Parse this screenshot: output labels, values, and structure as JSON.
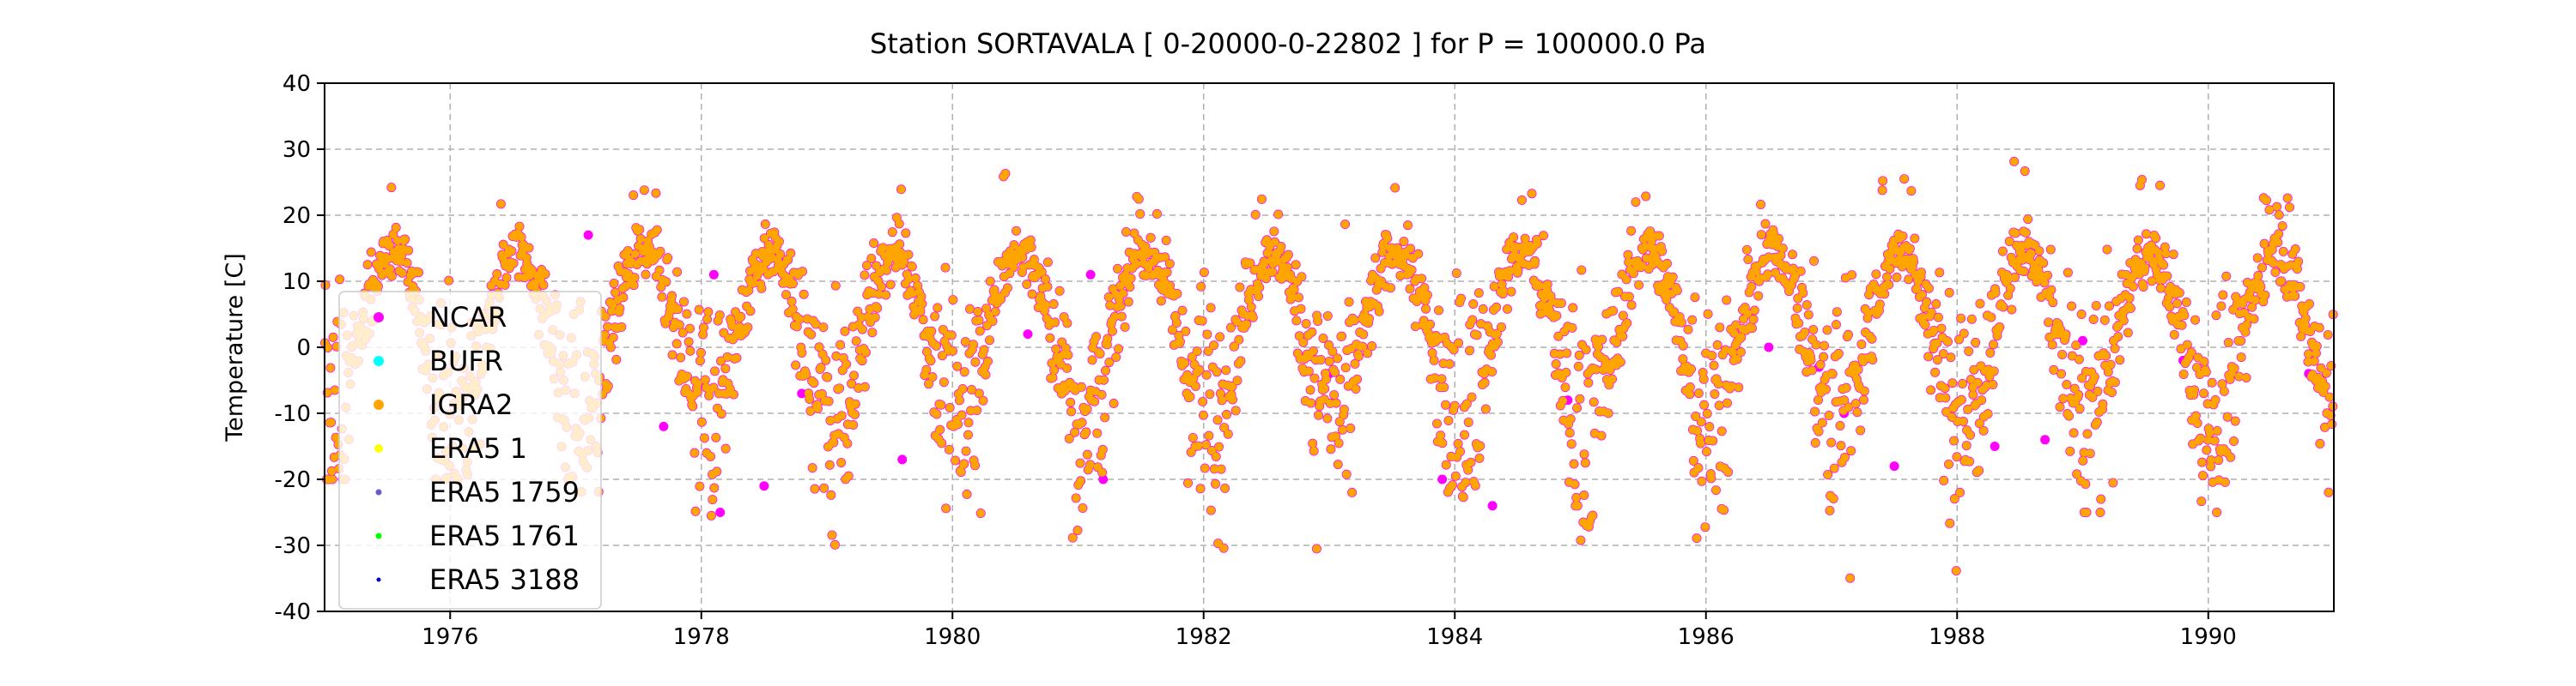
{
  "chart_data": {
    "type": "scatter",
    "title": "Station  SORTAVALA [ 0-20000-0-22802 ]  for P = 100000.0 Pa",
    "xlabel": "",
    "ylabel": "Temperature [C]",
    "xlim": [
      1975.0,
      1991.0
    ],
    "ylim": [
      -40,
      40
    ],
    "x_ticks": [
      1976,
      1978,
      1980,
      1982,
      1984,
      1986,
      1988,
      1990
    ],
    "y_ticks": [
      -40,
      -30,
      -20,
      -10,
      0,
      10,
      20,
      30,
      40
    ],
    "grid": true,
    "legend_position": "left",
    "seasonal_model": {
      "years": [
        1975,
        1976,
        1977,
        1978,
        1979,
        1980,
        1981,
        1982,
        1983,
        1984,
        1985,
        1986,
        1987,
        1988,
        1989,
        1990
      ],
      "summer_peak_max": [
        26,
        24,
        26,
        25,
        26,
        27,
        23,
        23,
        27,
        24,
        24,
        24,
        26,
        29,
        26,
        23
      ],
      "winter_min": [
        -20,
        -20,
        -26,
        -26,
        -32,
        -30,
        -25,
        -33,
        -22,
        -24,
        -30,
        -25,
        -37,
        -22,
        -25,
        -25
      ]
    },
    "series": [
      {
        "name": "NCAR",
        "color": "#ff00ff"
      },
      {
        "name": "BUFR",
        "color": "#00ffff"
      },
      {
        "name": "IGRA2",
        "color": "#ffa500"
      },
      {
        "name": "ERA5 1",
        "color": "#ffff00"
      },
      {
        "name": "ERA5 1759",
        "color": "#6a5acd"
      },
      {
        "name": "ERA5 1761",
        "color": "#00ff00"
      },
      {
        "name": "ERA5 3188",
        "color": "#0000cd"
      }
    ],
    "ncar_outliers": [
      [
        1977.1,
        17
      ],
      [
        1977.7,
        -12
      ],
      [
        1978.1,
        11
      ],
      [
        1978.15,
        -25
      ],
      [
        1978.5,
        -21
      ],
      [
        1978.8,
        -7
      ],
      [
        1979.6,
        -17
      ],
      [
        1980.6,
        2
      ],
      [
        1981.1,
        11
      ],
      [
        1981.2,
        -20
      ],
      [
        1983.0,
        -4
      ],
      [
        1984.3,
        -24
      ],
      [
        1984.9,
        -8
      ],
      [
        1986.5,
        0
      ],
      [
        1987.1,
        -10
      ],
      [
        1987.5,
        -18
      ],
      [
        1988.7,
        -14
      ],
      [
        1989.0,
        1
      ],
      [
        1989.8,
        -2
      ],
      [
        1990.8,
        -4
      ],
      [
        1983.9,
        -20
      ],
      [
        1988.3,
        -15
      ],
      [
        1986.9,
        -3
      ]
    ]
  }
}
